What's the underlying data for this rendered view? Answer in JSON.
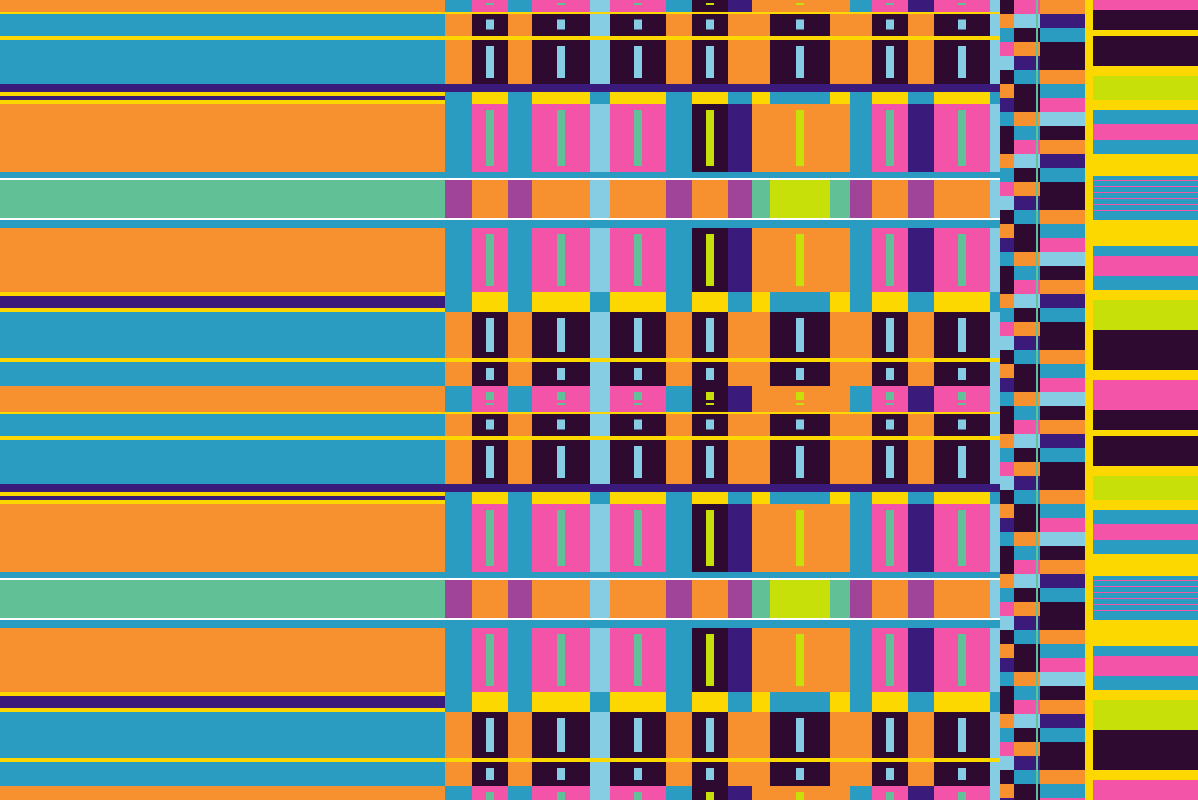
{
  "palette": {
    "orange": "#f7902e",
    "blue": "#2a9cc2",
    "lightblue": "#86cde4",
    "yellow": "#fcd800",
    "indigo": "#3a1a7a",
    "dark": "#2e0a30",
    "pink": "#f454a8",
    "green": "#62c096",
    "purple": "#a0449a",
    "lime": "#c8e00a",
    "red": "#f0104a",
    "white": "#ffffff"
  }
}
